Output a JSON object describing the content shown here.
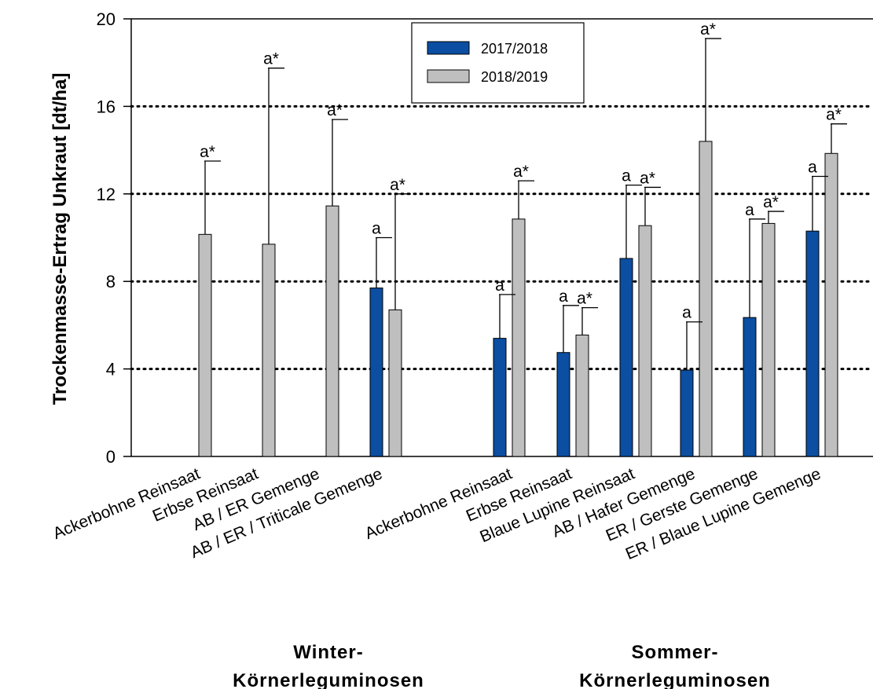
{
  "chart_data": {
    "type": "bar",
    "ylabel": "Trockenmasse-Ertrag Unkraut [dt/ha]",
    "xlabel": "",
    "ylim": [
      0,
      20
    ],
    "yticks": [
      "0",
      "4",
      "8",
      "12",
      "16",
      "20"
    ],
    "gridlines": [
      4,
      8,
      12,
      16
    ],
    "legend_position": "top-center",
    "colors": {
      "2017/2018": "#0b4ea2",
      "2018/2019": "#bfbfbf"
    },
    "groups": [
      {
        "label": "Winter-\nKörnerleguminosen",
        "label_lines": [
          "Winter-",
          "Körnerleguminosen"
        ],
        "categories": [
          "Ackerbohne Reinsaat",
          "Erbse Reinsaat",
          "AB / ER Gemenge",
          "AB / ER / Triticale Gemenge"
        ]
      },
      {
        "label": "Sommer-\nKörnerleguminosen",
        "label_lines": [
          "Sommer-",
          "Körnerleguminosen"
        ],
        "categories": [
          "Ackerbohne Reinsaat",
          "Erbse Reinsaat",
          "Blaue Lupine Reinsaat",
          "AB / Hafer Gemenge",
          "ER / Gerste Gemenge",
          "ER / Blaue Lupine Gemenge"
        ]
      }
    ],
    "categories": [
      "Ackerbohne Reinsaat",
      "Erbse Reinsaat",
      "AB / ER Gemenge",
      "AB / ER / Triticale Gemenge",
      "Ackerbohne Reinsaat",
      "Erbse Reinsaat",
      "Blaue Lupine Reinsaat",
      "AB / Hafer Gemenge",
      "ER / Gerste Gemenge",
      "ER / Blaue Lupine Gemenge"
    ],
    "series": [
      {
        "name": "2017/2018",
        "values": [
          null,
          null,
          null,
          7.7,
          5.4,
          4.75,
          9.05,
          3.95,
          6.35,
          10.3
        ],
        "error_upper": [
          null,
          null,
          null,
          10.0,
          7.4,
          6.9,
          12.4,
          6.15,
          10.85,
          12.8
        ],
        "labels": [
          null,
          null,
          null,
          "a",
          "a",
          "a",
          "a",
          "a",
          "a",
          "a"
        ]
      },
      {
        "name": "2018/2019",
        "values": [
          10.15,
          9.7,
          11.45,
          6.7,
          10.85,
          5.55,
          10.55,
          14.4,
          10.65,
          13.85
        ],
        "error_upper": [
          13.5,
          17.75,
          15.4,
          12.0,
          12.6,
          6.8,
          12.3,
          19.1,
          11.2,
          15.2
        ],
        "labels": [
          "a*",
          "a*",
          "a*",
          "a*",
          "a*",
          "a*",
          "a*",
          "a*",
          "a*",
          "a*"
        ]
      }
    ]
  }
}
